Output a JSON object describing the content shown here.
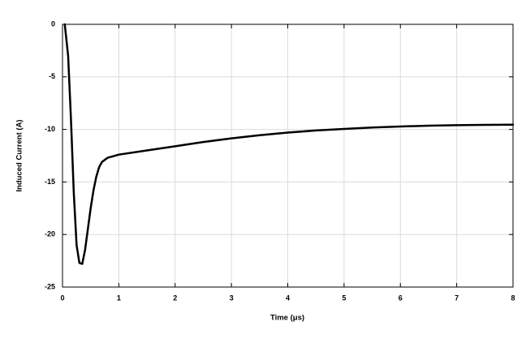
{
  "chart_data": {
    "type": "line",
    "x_label": "Time (μs)",
    "y_label": "Induced Current (A)",
    "series": [
      {
        "color": "#000000",
        "x": [
          0.04,
          0.1,
          0.15,
          0.2,
          0.25,
          0.3,
          0.35,
          0.4,
          0.45,
          0.5,
          0.55,
          0.6,
          0.65,
          0.7,
          0.8,
          0.9,
          1,
          1.5,
          2,
          2.5,
          3,
          3.5,
          4,
          4.5,
          5,
          5.5,
          6,
          6.5,
          7,
          7.5,
          8
        ],
        "values": [
          0,
          -3,
          -9,
          -16,
          -21,
          -22.7,
          -22.8,
          -21.5,
          -19.5,
          -17.5,
          -15.8,
          -14.5,
          -13.6,
          -13.1,
          -12.7,
          -12.55,
          -12.4,
          -12.0,
          -11.6,
          -11.2,
          -10.85,
          -10.55,
          -10.3,
          -10.1,
          -9.95,
          -9.82,
          -9.72,
          -9.65,
          -9.6,
          -9.57,
          -9.55
        ]
      }
    ],
    "xlim": [
      0,
      8
    ],
    "xticks": [
      0,
      1,
      2,
      3,
      4,
      5,
      6,
      7,
      8
    ],
    "ylim": [
      -25,
      0
    ],
    "yticks": [
      -25,
      -20,
      -15,
      -10,
      -5,
      0
    ],
    "grid": true
  }
}
